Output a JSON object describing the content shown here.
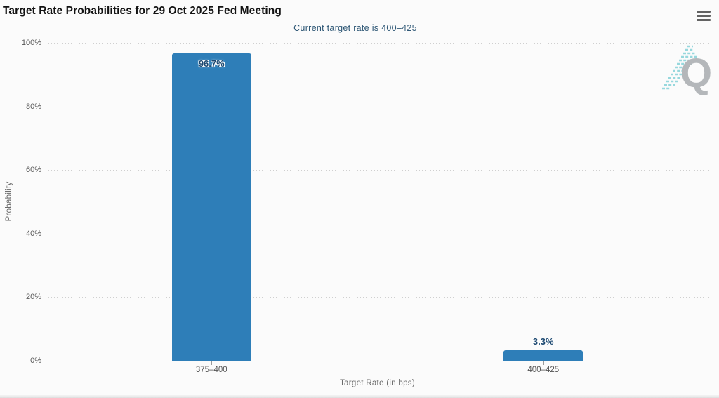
{
  "header": {
    "menu_icon": "hamburger"
  },
  "colors": {
    "bar": "#2e7eb8",
    "subtitle_text": "#2f5876",
    "watermark_teal": "#7fd0d6",
    "watermark_gray": "#b4b7ba"
  },
  "chart_data": {
    "type": "bar",
    "title": "Target Rate Probabilities for 29 Oct 2025 Fed Meeting",
    "subtitle": "Current target rate is 400–425",
    "categories": [
      "375–400",
      "400–425"
    ],
    "values": [
      96.7,
      3.3
    ],
    "value_labels": [
      "96.7%",
      "3.3%"
    ],
    "xlabel": "Target Rate (in bps)",
    "ylabel": "Probability",
    "ylim": [
      0,
      100
    ],
    "yticks": [
      "0%",
      "20%",
      "40%",
      "60%",
      "80%",
      "100%"
    ],
    "grid": "horizontal-dotted",
    "legend": "none",
    "watermark_letter": "Q"
  }
}
